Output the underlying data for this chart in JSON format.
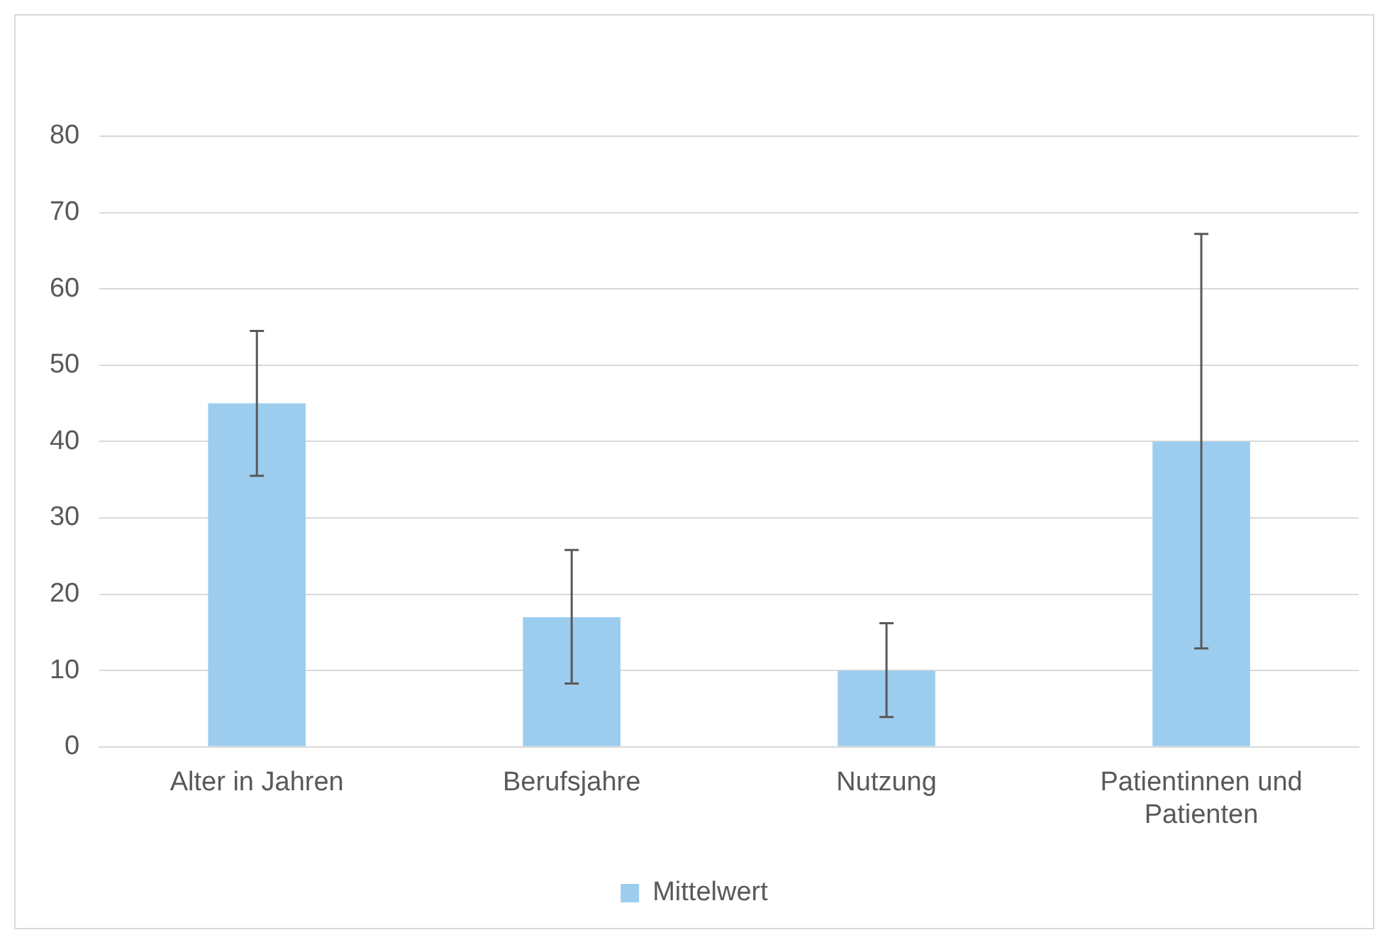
{
  "chart_data": {
    "type": "bar",
    "categories": [
      "Alter in Jahren",
      "Berufsjahre",
      "Nutzung",
      "Patientinnen und Patienten"
    ],
    "series": [
      {
        "name": "Mittelwert",
        "color": "#9dcdee",
        "values": [
          45,
          17,
          10,
          40
        ],
        "errors": [
          [
            35.5,
            54.5
          ],
          [
            8.3,
            25.8
          ],
          [
            3.9,
            16.2
          ],
          [
            12.9,
            67.2
          ]
        ]
      }
    ],
    "ylim": [
      0,
      80
    ],
    "yticks": [
      0,
      10,
      20,
      30,
      40,
      50,
      60,
      70,
      80
    ],
    "grid": "y",
    "legend": "bottom"
  }
}
